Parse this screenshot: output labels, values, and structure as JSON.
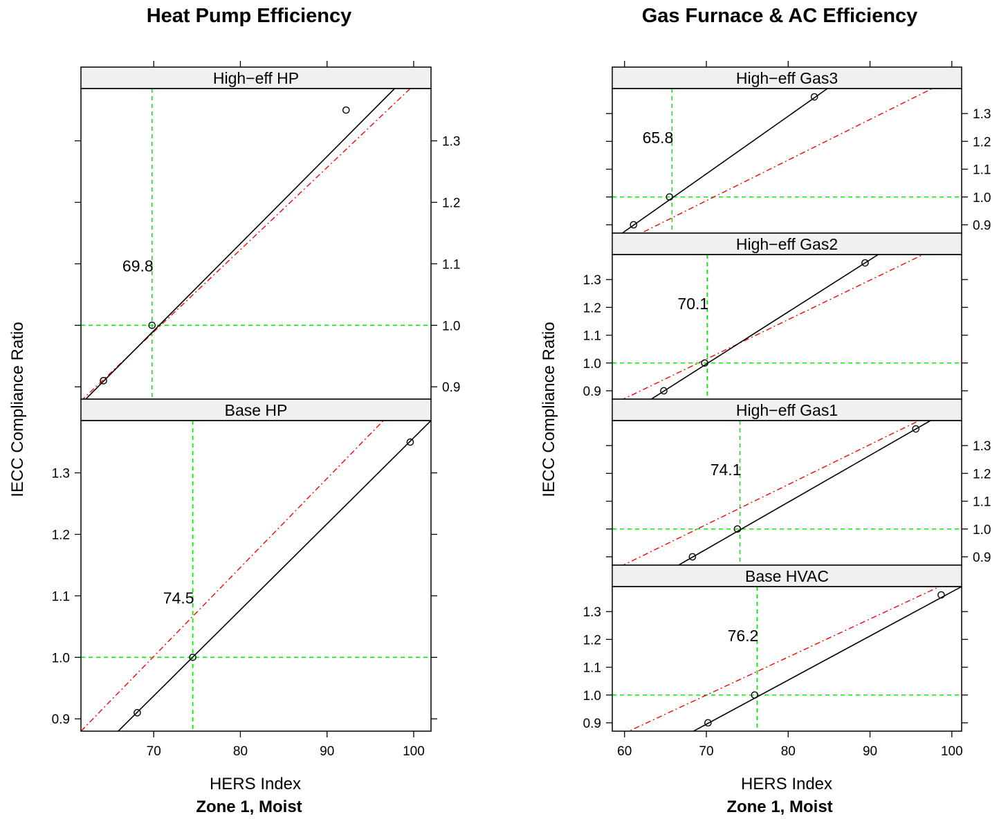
{
  "colors": {
    "fitted_line": "#000000",
    "reference_line": "#ff0000",
    "crosshair": "#00ee00",
    "strip_background": "#f0f0f0",
    "frame": "#000000"
  },
  "chart_data": [
    {
      "type": "line",
      "layout": "lattice",
      "title": "Heat Pump Efficiency",
      "xlabel": "HERS Index",
      "sublabel": "Zone 1, Moist",
      "ylabel": "IECC Compliance Ratio",
      "x_ticks": [
        70,
        80,
        90,
        100
      ],
      "xlim": [
        61.6,
        102
      ],
      "grid": false,
      "panels": [
        {
          "strip": "High−eff HP",
          "ylim": [
            0.88,
            1.385
          ],
          "y_ticks": [
            0.9,
            1.0,
            1.1,
            1.2,
            1.3
          ],
          "y_labels_side": "right",
          "crossing_label": "69.8",
          "crossing_x": 69.8,
          "points": [
            {
              "x": 64.2,
              "y": 0.91
            },
            {
              "x": 69.8,
              "y": 1.0
            },
            {
              "x": 92.2,
              "y": 1.35
            }
          ],
          "fit_line": [
            {
              "x": 61.8,
              "y": 0.875
            },
            {
              "x": 97.8,
              "y": 1.385
            }
          ],
          "reference_line": [
            {
              "x": 61.6,
              "y": 0.877
            },
            {
              "x": 99.6,
              "y": 1.385
            }
          ]
        },
        {
          "strip": "Base HP",
          "ylim": [
            0.88,
            1.385
          ],
          "y_ticks": [
            0.9,
            1.0,
            1.1,
            1.2,
            1.3
          ],
          "y_labels_side": "left",
          "crossing_label": "74.5",
          "crossing_x": 74.5,
          "points": [
            {
              "x": 68.1,
              "y": 0.91
            },
            {
              "x": 74.5,
              "y": 1.0
            },
            {
              "x": 99.6,
              "y": 1.35
            }
          ],
          "fit_line": [
            {
              "x": 65.9,
              "y": 0.88
            },
            {
              "x": 102.0,
              "y": 1.385
            }
          ],
          "reference_line": [
            {
              "x": 61.6,
              "y": 0.88
            },
            {
              "x": 96.5,
              "y": 1.385
            }
          ]
        }
      ]
    },
    {
      "type": "line",
      "layout": "lattice",
      "title": "Gas Furnace & AC Efficiency",
      "xlabel": "HERS Index",
      "sublabel": "Zone 1, Moist",
      "ylabel": "IECC Compliance Ratio",
      "x_ticks": [
        60,
        70,
        80,
        90,
        100
      ],
      "xlim": [
        58.5,
        101.2
      ],
      "grid": false,
      "panels": [
        {
          "strip": "High−eff Gas3",
          "ylim": [
            0.87,
            1.39
          ],
          "y_ticks": [
            0.9,
            1.0,
            1.1,
            1.2,
            1.3
          ],
          "y_labels_side": "right",
          "crossing_label": "65.8",
          "crossing_x": 65.8,
          "points": [
            {
              "x": 61.1,
              "y": 0.9
            },
            {
              "x": 65.5,
              "y": 1.0
            },
            {
              "x": 83.2,
              "y": 1.36
            }
          ],
          "fit_line": [
            {
              "x": 59.0,
              "y": 0.855
            },
            {
              "x": 84.8,
              "y": 1.39
            }
          ],
          "reference_line": [
            {
              "x": 61.0,
              "y": 0.855
            },
            {
              "x": 97.6,
              "y": 1.39
            }
          ]
        },
        {
          "strip": "High−eff Gas2",
          "ylim": [
            0.87,
            1.39
          ],
          "y_ticks": [
            0.9,
            1.0,
            1.1,
            1.2,
            1.3
          ],
          "y_labels_side": "left",
          "crossing_label": "70.1",
          "crossing_x": 70.1,
          "points": [
            {
              "x": 64.8,
              "y": 0.9
            },
            {
              "x": 69.8,
              "y": 1.0
            },
            {
              "x": 89.4,
              "y": 1.36
            }
          ],
          "fit_line": [
            {
              "x": 63.0,
              "y": 0.865
            },
            {
              "x": 91.0,
              "y": 1.39
            }
          ],
          "reference_line": [
            {
              "x": 59.5,
              "y": 0.865
            },
            {
              "x": 96.5,
              "y": 1.39
            }
          ]
        },
        {
          "strip": "High−eff Gas1",
          "ylim": [
            0.87,
            1.39
          ],
          "y_ticks": [
            0.9,
            1.0,
            1.1,
            1.2,
            1.3
          ],
          "y_labels_side": "right",
          "crossing_label": "74.1",
          "crossing_x": 74.1,
          "points": [
            {
              "x": 68.3,
              "y": 0.9
            },
            {
              "x": 73.8,
              "y": 1.0
            },
            {
              "x": 95.6,
              "y": 1.36
            }
          ],
          "fit_line": [
            {
              "x": 66.3,
              "y": 0.865
            },
            {
              "x": 97.4,
              "y": 1.39
            }
          ],
          "reference_line": [
            {
              "x": 59.5,
              "y": 0.865
            },
            {
              "x": 96.0,
              "y": 1.39
            }
          ]
        },
        {
          "strip": "Base HVAC",
          "ylim": [
            0.87,
            1.39
          ],
          "y_ticks": [
            0.9,
            1.0,
            1.1,
            1.2,
            1.3
          ],
          "y_labels_side": "left",
          "crossing_label": "76.2",
          "crossing_x": 76.2,
          "points": [
            {
              "x": 70.2,
              "y": 0.9
            },
            {
              "x": 75.9,
              "y": 1.0
            },
            {
              "x": 98.7,
              "y": 1.36
            }
          ],
          "fit_line": [
            {
              "x": 67.8,
              "y": 0.86
            },
            {
              "x": 101.2,
              "y": 1.39
            }
          ],
          "reference_line": [
            {
              "x": 59.8,
              "y": 0.86
            },
            {
              "x": 98.5,
              "y": 1.39
            }
          ]
        }
      ]
    }
  ]
}
